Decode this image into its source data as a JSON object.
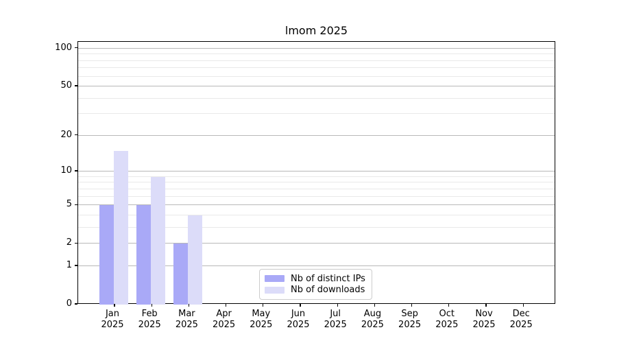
{
  "figure": {
    "background": "#ffffff",
    "spine_color": "#000000",
    "major_grid_color": "#b8b8b8",
    "minor_grid_color": "#e9e9e9",
    "text_color": "#000000"
  },
  "chart_data": {
    "type": "bar",
    "title": "lmom 2025",
    "xlabel": "",
    "ylabel": "",
    "yscale": "log1p",
    "ylim": [
      0,
      113
    ],
    "grid": "horizontal",
    "legend_position": "lower center",
    "y_major_ticks": [
      0,
      1,
      2,
      5,
      10,
      20,
      50,
      100
    ],
    "y_minor_ticks": [
      3,
      4,
      6,
      7,
      8,
      9,
      30,
      40,
      60,
      70,
      80,
      90
    ],
    "categories": [
      {
        "line1": "Jan",
        "line2": "2025"
      },
      {
        "line1": "Feb",
        "line2": "2025"
      },
      {
        "line1": "Mar",
        "line2": "2025"
      },
      {
        "line1": "Apr",
        "line2": "2025"
      },
      {
        "line1": "May",
        "line2": "2025"
      },
      {
        "line1": "Jun",
        "line2": "2025"
      },
      {
        "line1": "Jul",
        "line2": "2025"
      },
      {
        "line1": "Aug",
        "line2": "2025"
      },
      {
        "line1": "Sep",
        "line2": "2025"
      },
      {
        "line1": "Oct",
        "line2": "2025"
      },
      {
        "line1": "Nov",
        "line2": "2025"
      },
      {
        "line1": "Dec",
        "line2": "2025"
      }
    ],
    "series": [
      {
        "name": "Nb of distinct IPs",
        "color": "#a9a9f7",
        "values": [
          5,
          5,
          2,
          0,
          0,
          0,
          0,
          0,
          0,
          0,
          0,
          0
        ]
      },
      {
        "name": "Nb of downloads",
        "color": "#dcdcf9",
        "values": [
          15,
          9,
          4,
          0,
          0,
          0,
          0,
          0,
          0,
          0,
          0,
          0
        ]
      }
    ]
  }
}
